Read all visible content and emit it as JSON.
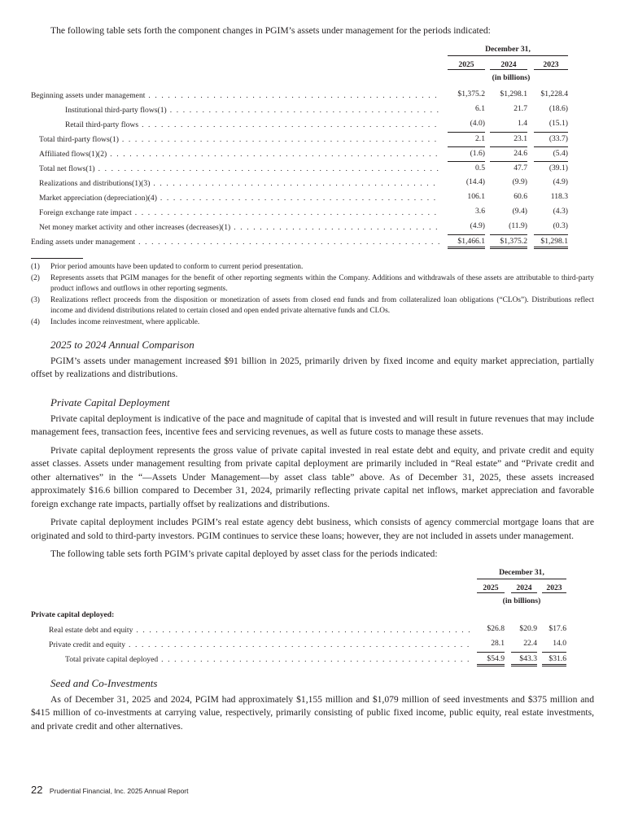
{
  "intro1": "The following table sets forth the component changes in PGIM’s assets under management for the periods indicated:",
  "table1": {
    "period_header": "December 31,",
    "years": [
      "2025",
      "2024",
      "2023"
    ],
    "unit": "(in billions)",
    "rows": [
      {
        "label": "Beginning assets under management",
        "indent": 0,
        "values": [
          "$1,375.2",
          "$1,298.1",
          "$1,228.4"
        ]
      },
      {
        "label": "Institutional third-party flows(1)",
        "indent": 2,
        "values": [
          "6.1",
          "21.7",
          "(18.6)"
        ]
      },
      {
        "label": "Retail third-party flows",
        "indent": 2,
        "values": [
          "(4.0)",
          "1.4",
          "(15.1)"
        ]
      },
      {
        "label": "Total third-party flows(1)",
        "indent": 1,
        "values": [
          "2.1",
          "23.1",
          "(33.7)"
        ]
      },
      {
        "label": "Affiliated flows(1)(2)",
        "indent": 1,
        "values": [
          "(1.6)",
          "24.6",
          "(5.4)"
        ]
      },
      {
        "label": "Total net flows(1)",
        "indent": 1,
        "values": [
          "0.5",
          "47.7",
          "(39.1)"
        ]
      },
      {
        "label": "Realizations and distributions(1)(3)",
        "indent": 1,
        "values": [
          "(14.4)",
          "(9.9)",
          "(4.9)"
        ]
      },
      {
        "label": "Market appreciation (depreciation)(4)",
        "indent": 1,
        "values": [
          "106.1",
          "60.6",
          "118.3"
        ]
      },
      {
        "label": "Foreign exchange rate impact",
        "indent": 1,
        "values": [
          "3.6",
          "(9.4)",
          "(4.3)"
        ]
      },
      {
        "label": "Net money market activity and other increases (decreases)(1)",
        "indent": 1,
        "values": [
          "(4.9)",
          "(11.9)",
          "(0.3)"
        ]
      },
      {
        "label": "Ending assets under management",
        "indent": 0,
        "values": [
          "$1,466.1",
          "$1,375.2",
          "$1,298.1"
        ]
      }
    ]
  },
  "footnotes": [
    {
      "num": "(1)",
      "text": "Prior period amounts have been updated to conform to current period presentation."
    },
    {
      "num": "(2)",
      "text": "Represents assets that PGIM manages for the benefit of other reporting segments within the Company. Additions and withdrawals of these assets are attributable to third-party product inflows and outflows in other reporting segments."
    },
    {
      "num": "(3)",
      "text": "Realizations reflect proceeds from the disposition or monetization of assets from closed end funds and from collateralized loan obligations (“CLOs”). Distributions reflect income and dividend distributions related to certain closed and open ended private alternative funds and CLOs."
    },
    {
      "num": "(4)",
      "text": "Includes income reinvestment, where applicable."
    }
  ],
  "section1": {
    "heading": "2025 to 2024 Annual Comparison",
    "p1": "PGIM’s assets under management increased $91 billion in 2025, primarily driven by fixed income and equity market appreciation, partially offset by realizations and distributions."
  },
  "section2": {
    "heading": "Private Capital Deployment",
    "p1": "Private capital deployment is indicative of the pace and magnitude of capital that is invested and will result in future revenues that may include management fees, transaction fees, incentive fees and servicing revenues, as well as future costs to manage these assets.",
    "p2": "Private capital deployment represents the gross value of private capital invested in real estate debt and equity, and private credit and equity asset classes. Assets under management resulting from private capital deployment are primarily included in “Real estate” and “Private credit and other alternatives” in the “—Assets Under Management—by asset class table” above. As of December 31, 2025, these assets increased approximately $16.6 billion compared to December 31, 2024, primarily reflecting private capital net inflows, market appreciation and favorable foreign exchange rate impacts, partially offset by realizations and distributions.",
    "p3": "Private capital deployment includes PGIM’s real estate agency debt business, which consists of agency commercial mortgage loans that are originated and sold to third-party investors. PGIM continues to service these loans; however, they are not included in assets under management.",
    "p4": "The following table sets forth PGIM’s private capital deployed by asset class for the periods indicated:"
  },
  "table2": {
    "period_header": "December 31,",
    "years": [
      "2025",
      "2024",
      "2023"
    ],
    "unit": "(in billions)",
    "section_label": "Private capital deployed:",
    "rows": [
      {
        "label": "Real estate debt and equity",
        "indent": 1,
        "values": [
          "$26.8",
          "$20.9",
          "$17.6"
        ]
      },
      {
        "label": "Private credit and equity",
        "indent": 1,
        "values": [
          "28.1",
          "22.4",
          "14.0"
        ]
      },
      {
        "label": "Total private capital deployed",
        "indent": 2,
        "values": [
          "$54.9",
          "$43.3",
          "$31.6"
        ]
      }
    ]
  },
  "section3": {
    "heading": "Seed and Co-Investments",
    "p1": "As of December 31, 2025 and 2024, PGIM had approximately $1,155 million and $1,079 million of seed investments and $375 million and $415 million of co-investments at carrying value, respectively, primarily consisting of public fixed income, public equity, real estate investments, and private credit and other alternatives."
  },
  "footer": {
    "page_number": "22",
    "report_title": "Prudential Financial, Inc. 2025 Annual Report"
  }
}
